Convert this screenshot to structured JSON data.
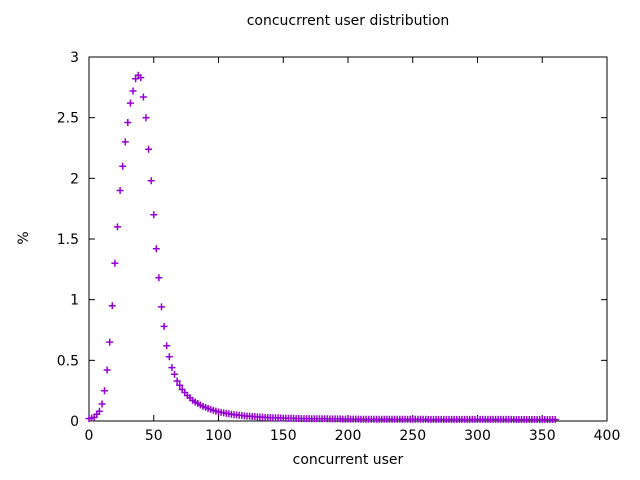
{
  "window": {
    "background": "#ffffff",
    "foreground": "#000000"
  },
  "chart_data": {
    "type": "scatter",
    "marker": "plus",
    "marker_color": "#9400d3",
    "title": "concucrrent user distribution",
    "xlabel": "concurrent user",
    "ylabel": "%",
    "xlim": [
      0,
      400
    ],
    "ylim": [
      0,
      3
    ],
    "xticks": [
      0,
      50,
      100,
      150,
      200,
      250,
      300,
      350,
      400
    ],
    "yticks": [
      0,
      0.5,
      1,
      1.5,
      2,
      2.5,
      3
    ],
    "grid": false,
    "legend": "none",
    "border": "full-box-with-mirrored-ticks",
    "series": [
      {
        "name": "concurrent user distribution",
        "points": [
          [
            0,
            0.02
          ],
          [
            2,
            0.025
          ],
          [
            4,
            0.03
          ],
          [
            6,
            0.055
          ],
          [
            8,
            0.08
          ],
          [
            10,
            0.14
          ],
          [
            12,
            0.25
          ],
          [
            14,
            0.42
          ],
          [
            16,
            0.65
          ],
          [
            18,
            0.95
          ],
          [
            20,
            1.3
          ],
          [
            22,
            1.6
          ],
          [
            24,
            1.9
          ],
          [
            26,
            2.1
          ],
          [
            28,
            2.3
          ],
          [
            30,
            2.46
          ],
          [
            32,
            2.62
          ],
          [
            34,
            2.72
          ],
          [
            36,
            2.82
          ],
          [
            38,
            2.85
          ],
          [
            40,
            2.83
          ],
          [
            42,
            2.67
          ],
          [
            44,
            2.5
          ],
          [
            46,
            2.24
          ],
          [
            48,
            1.98
          ],
          [
            50,
            1.7
          ],
          [
            52,
            1.42
          ],
          [
            54,
            1.18
          ],
          [
            56,
            0.94
          ],
          [
            58,
            0.78
          ],
          [
            60,
            0.62
          ],
          [
            62,
            0.53
          ],
          [
            64,
            0.44
          ],
          [
            66,
            0.385
          ],
          [
            68,
            0.33
          ],
          [
            70,
            0.295
          ],
          [
            72,
            0.26
          ],
          [
            74,
            0.235
          ],
          [
            76,
            0.21
          ],
          [
            78,
            0.19
          ],
          [
            80,
            0.17
          ],
          [
            82,
            0.157
          ],
          [
            84,
            0.145
          ],
          [
            86,
            0.132
          ],
          [
            88,
            0.12
          ],
          [
            90,
            0.112
          ],
          [
            92,
            0.104
          ],
          [
            94,
            0.096
          ],
          [
            96,
            0.088
          ],
          [
            98,
            0.082
          ],
          [
            100,
            0.075
          ],
          [
            102,
            0.071
          ],
          [
            104,
            0.067
          ],
          [
            106,
            0.063
          ],
          [
            108,
            0.059
          ],
          [
            110,
            0.055
          ],
          [
            112,
            0.052
          ],
          [
            114,
            0.05
          ],
          [
            116,
            0.047
          ],
          [
            118,
            0.045
          ],
          [
            120,
            0.042
          ],
          [
            122,
            0.04
          ],
          [
            124,
            0.039
          ],
          [
            126,
            0.037
          ],
          [
            128,
            0.036
          ],
          [
            130,
            0.034
          ],
          [
            132,
            0.033
          ],
          [
            134,
            0.032
          ],
          [
            136,
            0.03
          ],
          [
            138,
            0.029
          ],
          [
            140,
            0.028
          ],
          [
            142,
            0.027
          ],
          [
            144,
            0.026
          ],
          [
            146,
            0.026
          ],
          [
            148,
            0.025
          ],
          [
            150,
            0.024
          ],
          [
            152,
            0.023
          ],
          [
            154,
            0.023
          ],
          [
            156,
            0.022
          ],
          [
            158,
            0.022
          ],
          [
            160,
            0.021
          ],
          [
            162,
            0.021
          ],
          [
            164,
            0.02
          ],
          [
            166,
            0.02
          ],
          [
            168,
            0.02
          ],
          [
            170,
            0.02
          ],
          [
            172,
            0.019
          ],
          [
            174,
            0.019
          ],
          [
            176,
            0.019
          ],
          [
            178,
            0.018
          ],
          [
            180,
            0.018
          ],
          [
            182,
            0.018
          ],
          [
            184,
            0.018
          ],
          [
            186,
            0.017
          ],
          [
            188,
            0.017
          ],
          [
            190,
            0.017
          ],
          [
            192,
            0.017
          ],
          [
            194,
            0.017
          ],
          [
            196,
            0.016
          ],
          [
            198,
            0.016
          ],
          [
            200,
            0.016
          ],
          [
            202,
            0.016
          ],
          [
            204,
            0.016
          ],
          [
            206,
            0.016
          ],
          [
            208,
            0.016
          ],
          [
            210,
            0.015
          ],
          [
            212,
            0.015
          ],
          [
            214,
            0.015
          ],
          [
            216,
            0.015
          ],
          [
            218,
            0.015
          ],
          [
            220,
            0.015
          ],
          [
            222,
            0.015
          ],
          [
            224,
            0.015
          ],
          [
            226,
            0.015
          ],
          [
            228,
            0.015
          ],
          [
            230,
            0.015
          ],
          [
            232,
            0.014
          ],
          [
            234,
            0.014
          ],
          [
            236,
            0.014
          ],
          [
            238,
            0.014
          ],
          [
            240,
            0.014
          ],
          [
            242,
            0.014
          ],
          [
            244,
            0.014
          ],
          [
            246,
            0.014
          ],
          [
            248,
            0.014
          ],
          [
            250,
            0.014
          ],
          [
            252,
            0.014
          ],
          [
            254,
            0.014
          ],
          [
            256,
            0.014
          ],
          [
            258,
            0.014
          ],
          [
            260,
            0.014
          ],
          [
            262,
            0.013
          ],
          [
            264,
            0.013
          ],
          [
            266,
            0.013
          ],
          [
            268,
            0.013
          ],
          [
            270,
            0.013
          ],
          [
            272,
            0.013
          ],
          [
            274,
            0.013
          ],
          [
            276,
            0.013
          ],
          [
            278,
            0.013
          ],
          [
            280,
            0.013
          ],
          [
            282,
            0.013
          ],
          [
            284,
            0.013
          ],
          [
            286,
            0.013
          ],
          [
            288,
            0.013
          ],
          [
            290,
            0.013
          ],
          [
            292,
            0.013
          ],
          [
            294,
            0.013
          ],
          [
            296,
            0.013
          ],
          [
            298,
            0.013
          ],
          [
            300,
            0.013
          ],
          [
            302,
            0.013
          ],
          [
            304,
            0.013
          ],
          [
            306,
            0.013
          ],
          [
            308,
            0.013
          ],
          [
            310,
            0.013
          ],
          [
            312,
            0.013
          ],
          [
            314,
            0.013
          ],
          [
            316,
            0.013
          ],
          [
            318,
            0.013
          ],
          [
            320,
            0.013
          ],
          [
            322,
            0.013
          ],
          [
            324,
            0.013
          ],
          [
            326,
            0.013
          ],
          [
            328,
            0.012
          ],
          [
            330,
            0.012
          ],
          [
            332,
            0.012
          ],
          [
            334,
            0.012
          ],
          [
            336,
            0.012
          ],
          [
            338,
            0.012
          ],
          [
            340,
            0.012
          ],
          [
            342,
            0.012
          ],
          [
            344,
            0.012
          ],
          [
            346,
            0.012
          ],
          [
            348,
            0.012
          ],
          [
            350,
            0.012
          ],
          [
            352,
            0.012
          ],
          [
            354,
            0.012
          ],
          [
            356,
            0.012
          ],
          [
            358,
            0.012
          ],
          [
            360,
            0.012
          ]
        ]
      }
    ]
  }
}
